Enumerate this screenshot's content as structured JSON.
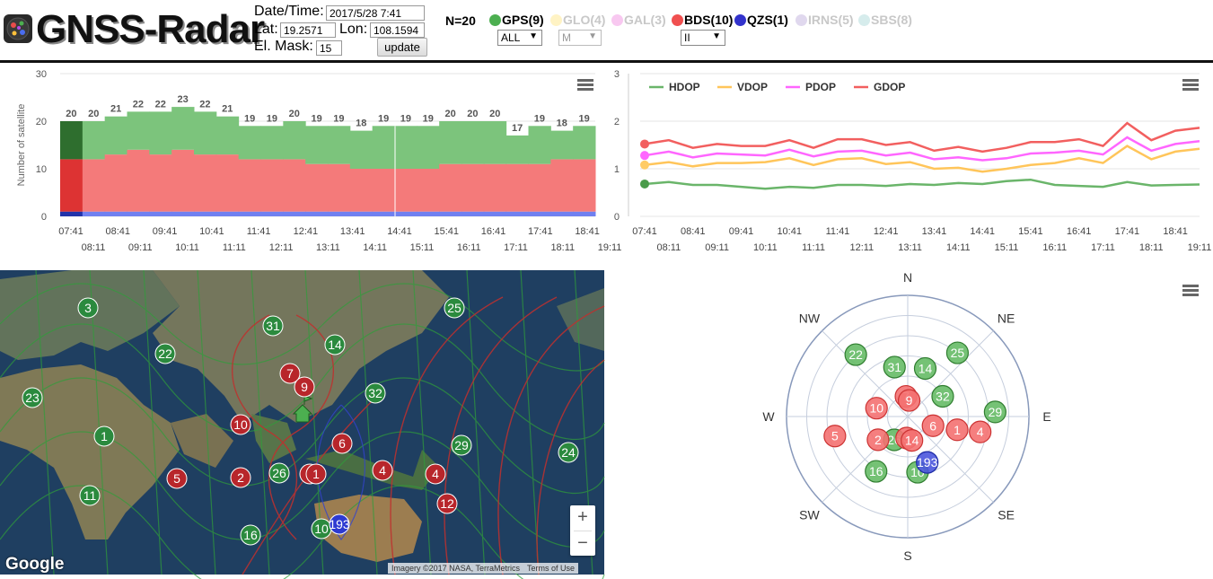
{
  "app": {
    "title": "GNSS-Radar"
  },
  "form": {
    "datetime_label": "Date/Time:",
    "datetime_value": "2017/5/28 7:41",
    "lat_label": "Lat:",
    "lat_value": "19.2571",
    "lon_label": "Lon:",
    "lon_value": "108.1594",
    "elmask_label": "El. Mask:",
    "elmask_value": "15",
    "update_label": "update"
  },
  "count": "N=20",
  "systems": [
    {
      "label": "GPS(9)",
      "color": "#4caf50",
      "active": true
    },
    {
      "label": "GLO(4)",
      "color": "#fff3c4",
      "active": false
    },
    {
      "label": "GAL(3)",
      "color": "#f8c8f0",
      "active": false
    },
    {
      "label": "BDS(10)",
      "color": "#f05050",
      "active": true
    },
    {
      "label": "QZS(1)",
      "color": "#3333cc",
      "active": true
    },
    {
      "label": "IRNS(5)",
      "color": "#e0d8ee",
      "active": false
    },
    {
      "label": "SBS(8)",
      "color": "#d6ecec",
      "active": false
    }
  ],
  "selects": {
    "gps": "ALL",
    "glo": "M",
    "bds": "II"
  },
  "colors": {
    "gps": "#7cc47c",
    "bds": "#f47a7a",
    "qzs": "#7080f0",
    "hdop": "#6ab56a",
    "vdop": "#ffc55a",
    "pdop": "#ff66ff",
    "gdop": "#f25f5f"
  },
  "chart_data": [
    {
      "type": "area",
      "title": "",
      "ylabel": "Number of satellite",
      "ylim": [
        0,
        30
      ],
      "y_ticks": [
        "0",
        "10",
        "20",
        "30"
      ],
      "x_ticks_top": [
        "07:41",
        "08:41",
        "09:41",
        "10:41",
        "11:41",
        "12:41",
        "13:41",
        "14:41",
        "15:41",
        "16:41",
        "17:41",
        "18:41"
      ],
      "x_ticks_bottom": [
        "08:11",
        "09:11",
        "10:11",
        "11:11",
        "12:11",
        "13:11",
        "14:11",
        "15:11",
        "16:11",
        "17:11",
        "18:11",
        "19:11"
      ],
      "totals": [
        20,
        20,
        21,
        22,
        22,
        23,
        22,
        21,
        19,
        19,
        20,
        19,
        19,
        18,
        19,
        19,
        19,
        20,
        20,
        20,
        17,
        19,
        18,
        19
      ],
      "series": [
        {
          "name": "QZS",
          "values": [
            1,
            1,
            1,
            1,
            1,
            1,
            1,
            1,
            1,
            1,
            1,
            1,
            1,
            1,
            1,
            1,
            1,
            1,
            1,
            1,
            1,
            1,
            1,
            1
          ]
        },
        {
          "name": "BDS",
          "values": [
            11,
            11,
            12,
            13,
            12,
            13,
            12,
            12,
            11,
            11,
            11,
            10,
            10,
            9,
            9,
            9,
            9,
            10,
            10,
            10,
            10,
            10,
            11,
            11
          ]
        },
        {
          "name": "GPS",
          "values": [
            8,
            8,
            8,
            8,
            9,
            9,
            9,
            8,
            7,
            7,
            8,
            8,
            8,
            8,
            9,
            9,
            9,
            9,
            9,
            9,
            6,
            8,
            6,
            7
          ]
        }
      ]
    },
    {
      "type": "line",
      "title": "",
      "ylim": [
        0,
        3
      ],
      "y_ticks": [
        "0",
        "1",
        "2",
        "3"
      ],
      "x_ticks_top": [
        "07:41",
        "08:41",
        "09:41",
        "10:41",
        "11:41",
        "12:41",
        "13:41",
        "14:41",
        "15:41",
        "16:41",
        "17:41",
        "18:41"
      ],
      "x_ticks_bottom": [
        "08:11",
        "09:11",
        "10:11",
        "11:11",
        "12:11",
        "13:11",
        "14:11",
        "15:11",
        "16:11",
        "17:11",
        "18:11",
        "19:11"
      ],
      "legend": "top-left",
      "series": [
        {
          "name": "HDOP",
          "values": [
            0.68,
            0.72,
            0.66,
            0.66,
            0.62,
            0.58,
            0.62,
            0.6,
            0.66,
            0.66,
            0.64,
            0.68,
            0.66,
            0.7,
            0.68,
            0.74,
            0.77,
            0.66,
            0.64,
            0.62,
            0.72,
            0.65,
            0.66,
            0.67
          ]
        },
        {
          "name": "VDOP",
          "values": [
            1.08,
            1.14,
            1.05,
            1.12,
            1.12,
            1.14,
            1.22,
            1.08,
            1.2,
            1.22,
            1.1,
            1.14,
            1.0,
            1.02,
            0.94,
            1.0,
            1.08,
            1.12,
            1.22,
            1.12,
            1.48,
            1.2,
            1.36,
            1.42
          ]
        },
        {
          "name": "PDOP",
          "values": [
            1.28,
            1.36,
            1.24,
            1.32,
            1.3,
            1.28,
            1.4,
            1.26,
            1.36,
            1.38,
            1.28,
            1.34,
            1.2,
            1.24,
            1.18,
            1.22,
            1.32,
            1.34,
            1.38,
            1.3,
            1.66,
            1.38,
            1.52,
            1.58
          ]
        },
        {
          "name": "GDOP",
          "values": [
            1.52,
            1.6,
            1.44,
            1.52,
            1.48,
            1.48,
            1.6,
            1.44,
            1.62,
            1.62,
            1.5,
            1.56,
            1.38,
            1.46,
            1.36,
            1.44,
            1.56,
            1.56,
            1.62,
            1.48,
            1.96,
            1.6,
            1.8,
            1.86
          ]
        }
      ]
    }
  ],
  "skyplot": {
    "directions": {
      "n": "N",
      "ne": "NE",
      "e": "E",
      "se": "SE",
      "s": "S",
      "sw": "SW",
      "w": "W",
      "nw": "NW"
    },
    "satellites": [
      {
        "prn": "25",
        "sys": "gps",
        "az": 38,
        "el": 30
      },
      {
        "prn": "22",
        "sys": "gps",
        "az": 320,
        "el": 30
      },
      {
        "prn": "31",
        "sys": "gps",
        "az": 345,
        "el": 52
      },
      {
        "prn": "14",
        "sys": "gps",
        "az": 20,
        "el": 52
      },
      {
        "prn": "32",
        "sys": "gps",
        "az": 60,
        "el": 60
      },
      {
        "prn": "29",
        "sys": "gps",
        "az": 87,
        "el": 25
      },
      {
        "prn": "26",
        "sys": "gps",
        "az": 210,
        "el": 70
      },
      {
        "prn": "16",
        "sys": "gps",
        "az": 210,
        "el": 43
      },
      {
        "prn": "10",
        "sys": "gps",
        "az": 170,
        "el": 48
      },
      {
        "prn": "7",
        "sys": "bds",
        "az": 355,
        "el": 75
      },
      {
        "prn": "9",
        "sys": "bds",
        "az": 5,
        "el": 78
      },
      {
        "prn": "10",
        "sys": "bds",
        "az": 285,
        "el": 66
      },
      {
        "prn": "6",
        "sys": "bds",
        "az": 110,
        "el": 70
      },
      {
        "prn": "1",
        "sys": "bds",
        "az": 105,
        "el": 52
      },
      {
        "prn": "4",
        "sys": "bds",
        "az": 102,
        "el": 35
      },
      {
        "prn": "5",
        "sys": "bds",
        "az": 255,
        "el": 34
      },
      {
        "prn": "2",
        "sys": "bds",
        "az": 232,
        "el": 62
      },
      {
        "prn": "3",
        "sys": "bds",
        "az": 183,
        "el": 74
      },
      {
        "prn": "14",
        "sys": "bds",
        "az": 170,
        "el": 72
      },
      {
        "prn": "193",
        "sys": "qzs",
        "az": 157,
        "el": 53
      }
    ]
  },
  "map": {
    "gps_markers": [
      "3",
      "25",
      "31",
      "14",
      "22",
      "23",
      "32",
      "1",
      "29",
      "24",
      "26",
      "11",
      "16",
      "10"
    ],
    "bds_markers": [
      "7",
      "9",
      "10",
      "6",
      "5",
      "2",
      "3",
      "4",
      "1",
      "4",
      "12"
    ],
    "qzs_markers": [
      "193"
    ],
    "zoom_in": "+",
    "zoom_out": "−",
    "google": "Google",
    "imagery": "Imagery ©2017 NASA, TerraMetrics",
    "terms": "Terms of Use"
  }
}
